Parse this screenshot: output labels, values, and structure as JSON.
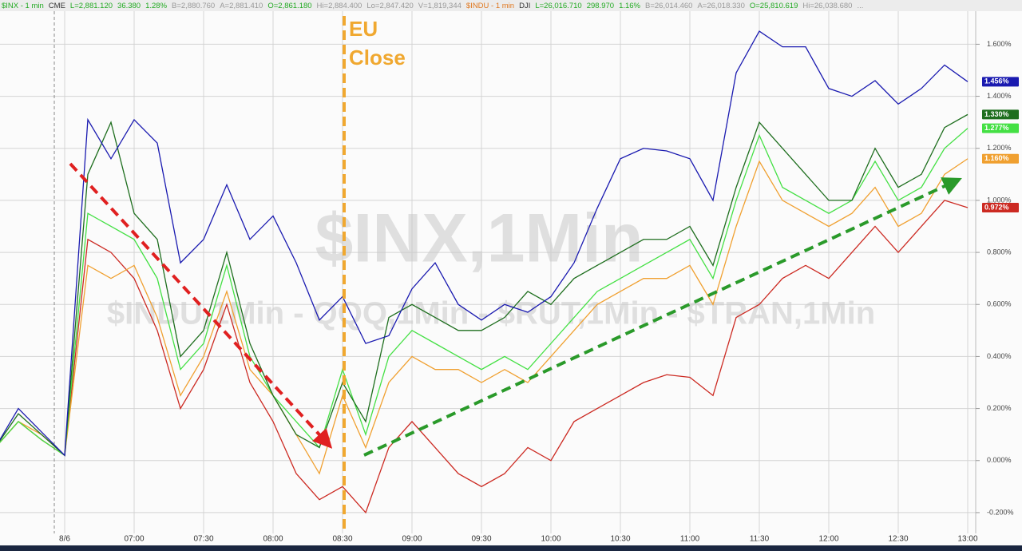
{
  "chart_data": {
    "type": "line",
    "header": [
      {
        "text": "$INX - 1 min",
        "color": "#22aa22"
      },
      {
        "text": "CME",
        "color": "#333333"
      },
      {
        "text": "L=2,881.120",
        "color": "#22aa22"
      },
      {
        "text": "36.380",
        "color": "#22aa22"
      },
      {
        "text": "1.28%",
        "color": "#22aa22"
      },
      {
        "text": "B=2,880.760",
        "color": "#999999"
      },
      {
        "text": "A=2,881.410",
        "color": "#999999"
      },
      {
        "text": "O=2,861.180",
        "color": "#22aa22"
      },
      {
        "text": "Hi=2,884.400",
        "color": "#999999"
      },
      {
        "text": "Lo=2,847.420",
        "color": "#999999"
      },
      {
        "text": "V=1,819,344",
        "color": "#999999"
      },
      {
        "text": "$INDU - 1 min",
        "color": "#e07820"
      },
      {
        "text": "DJI",
        "color": "#333333"
      },
      {
        "text": "L=26,016.710",
        "color": "#22aa22"
      },
      {
        "text": "298.970",
        "color": "#22aa22"
      },
      {
        "text": "1.16%",
        "color": "#22aa22"
      },
      {
        "text": "B=26,014.460",
        "color": "#999999"
      },
      {
        "text": "A=26,018.330",
        "color": "#999999"
      },
      {
        "text": "O=25,810.619",
        "color": "#22aa22"
      },
      {
        "text": "Hi=26,038.680",
        "color": "#999999"
      },
      {
        "text": "...",
        "color": "#999999"
      }
    ],
    "watermark": [
      "$INX,1Min",
      "$INDU,1Min - QQQ,1Min - $RUT,1Min - $TRAN,1Min"
    ],
    "annotation": [
      "EU",
      "Close"
    ],
    "categories": [
      null,
      null,
      null,
      "8/6",
      null,
      null,
      "07:00",
      null,
      null,
      "07:30",
      null,
      null,
      "08:00",
      null,
      null,
      "08:30",
      null,
      null,
      "09:00",
      null,
      null,
      "09:30",
      null,
      null,
      "10:00",
      null,
      null,
      "10:30",
      null,
      null,
      "11:00",
      null,
      null,
      "11:30",
      null,
      null,
      "12:00",
      null,
      null,
      "12:30",
      null,
      null,
      "13:00"
    ],
    "ylim": [
      -0.28,
      1.77
    ],
    "yticks": [
      {
        "value": -0.2,
        "label": "-0.200%"
      },
      {
        "value": 0,
        "label": "0.000%"
      },
      {
        "value": 0.2,
        "label": "0.200%"
      },
      {
        "value": 0.4,
        "label": "0.400%"
      },
      {
        "value": 0.6,
        "label": "0.600%"
      },
      {
        "value": 0.8,
        "label": "0.800%"
      },
      {
        "value": 1.0,
        "label": "1.000%"
      },
      {
        "value": 1.2,
        "label": "1.200%"
      },
      {
        "value": 1.4,
        "label": "1.400%"
      },
      {
        "value": 1.6,
        "label": "1.600%"
      }
    ],
    "grid": true,
    "series": [
      {
        "color": "#cc2a22",
        "values": [
          0.05,
          0.15,
          0.08,
          0.02,
          0.85,
          0.8,
          0.7,
          0.5,
          0.2,
          0.35,
          0.6,
          0.3,
          0.15,
          -0.05,
          -0.15,
          -0.1,
          -0.2,
          0.05,
          0.15,
          0.05,
          -0.05,
          -0.1,
          -0.05,
          0.05,
          0.0,
          0.15,
          0.2,
          0.25,
          0.3,
          0.33,
          0.32,
          0.25,
          0.55,
          0.6,
          0.7,
          0.75,
          0.7,
          0.8,
          0.9,
          0.8,
          0.9,
          1.0,
          0.972
        ],
        "value_labels": [
          null,
          null,
          null,
          null,
          null,
          null,
          null,
          null,
          null,
          null,
          null,
          null,
          null,
          null,
          null,
          null,
          null,
          null,
          null,
          null,
          null,
          null,
          null,
          null,
          null,
          null,
          null,
          null,
          null,
          null,
          null,
          null,
          null,
          null,
          null,
          null,
          null,
          null,
          null,
          null,
          null,
          null,
          "0.972%"
        ]
      },
      {
        "color": "#f0a030",
        "values": [
          0.05,
          0.15,
          0.1,
          0.02,
          0.75,
          0.7,
          0.75,
          0.55,
          0.25,
          0.4,
          0.65,
          0.35,
          0.25,
          0.1,
          -0.05,
          0.25,
          0.05,
          0.3,
          0.4,
          0.35,
          0.35,
          0.3,
          0.35,
          0.3,
          0.4,
          0.5,
          0.6,
          0.65,
          0.7,
          0.7,
          0.75,
          0.6,
          0.9,
          1.15,
          1.0,
          0.95,
          0.9,
          0.95,
          1.05,
          0.9,
          0.95,
          1.1,
          1.16
        ],
        "value_labels": [
          null,
          null,
          null,
          null,
          null,
          null,
          null,
          null,
          null,
          null,
          null,
          null,
          null,
          null,
          null,
          null,
          null,
          null,
          null,
          null,
          null,
          null,
          null,
          null,
          null,
          null,
          null,
          null,
          null,
          null,
          null,
          null,
          null,
          null,
          null,
          null,
          null,
          null,
          null,
          null,
          null,
          null,
          "1.160%"
        ]
      },
      {
        "color": "#44e044",
        "values": [
          0.05,
          0.15,
          0.08,
          0.02,
          0.95,
          0.9,
          0.85,
          0.7,
          0.35,
          0.45,
          0.75,
          0.4,
          0.25,
          0.15,
          0.05,
          0.35,
          0.1,
          0.4,
          0.5,
          0.45,
          0.4,
          0.35,
          0.4,
          0.35,
          0.45,
          0.55,
          0.65,
          0.7,
          0.75,
          0.8,
          0.85,
          0.7,
          1.0,
          1.25,
          1.05,
          1.0,
          0.95,
          1.0,
          1.15,
          1.0,
          1.05,
          1.2,
          1.277
        ],
        "value_labels": [
          null,
          null,
          null,
          null,
          null,
          null,
          null,
          null,
          null,
          null,
          null,
          null,
          null,
          null,
          null,
          null,
          null,
          null,
          null,
          null,
          null,
          null,
          null,
          null,
          null,
          null,
          null,
          null,
          null,
          null,
          null,
          null,
          null,
          null,
          null,
          null,
          null,
          null,
          null,
          null,
          null,
          null,
          "1.277%"
        ]
      },
      {
        "color": "#1e6e1e",
        "values": [
          0.05,
          0.18,
          0.1,
          0.02,
          1.1,
          1.3,
          0.95,
          0.85,
          0.4,
          0.5,
          0.8,
          0.45,
          0.25,
          0.1,
          0.05,
          0.3,
          0.15,
          0.55,
          0.6,
          0.55,
          0.5,
          0.5,
          0.55,
          0.65,
          0.6,
          0.7,
          0.75,
          0.8,
          0.85,
          0.85,
          0.9,
          0.75,
          1.05,
          1.3,
          1.2,
          1.1,
          1.0,
          1.0,
          1.2,
          1.05,
          1.1,
          1.28,
          1.33
        ],
        "value_labels": [
          null,
          null,
          null,
          null,
          null,
          null,
          null,
          null,
          null,
          null,
          null,
          null,
          null,
          null,
          null,
          null,
          null,
          null,
          null,
          null,
          null,
          null,
          null,
          null,
          null,
          null,
          null,
          null,
          null,
          null,
          null,
          null,
          null,
          null,
          null,
          null,
          null,
          null,
          null,
          null,
          null,
          null,
          "1.330%"
        ]
      },
      {
        "color": "#1a1ab0",
        "values": [
          0.05,
          0.2,
          0.11,
          0.02,
          1.31,
          1.16,
          1.31,
          1.22,
          0.76,
          0.85,
          1.06,
          0.85,
          0.94,
          0.76,
          0.54,
          0.63,
          0.45,
          0.48,
          0.66,
          0.76,
          0.6,
          0.54,
          0.6,
          0.57,
          0.63,
          0.76,
          0.97,
          1.16,
          1.2,
          1.19,
          1.16,
          1.0,
          1.49,
          1.65,
          1.59,
          1.59,
          1.43,
          1.4,
          1.46,
          1.37,
          1.43,
          1.52,
          1.456
        ],
        "value_labels": [
          null,
          null,
          null,
          null,
          null,
          null,
          null,
          null,
          null,
          null,
          null,
          null,
          null,
          null,
          null,
          null,
          null,
          null,
          null,
          null,
          null,
          null,
          null,
          null,
          null,
          null,
          null,
          null,
          null,
          null,
          null,
          null,
          null,
          null,
          null,
          null,
          null,
          null,
          null,
          null,
          null,
          null,
          "1.456%"
        ]
      }
    ]
  }
}
